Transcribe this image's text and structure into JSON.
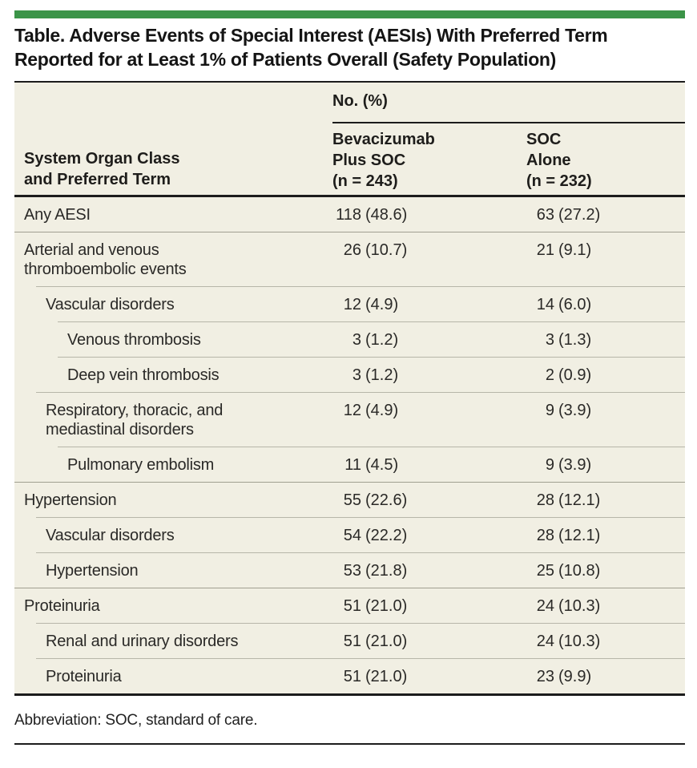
{
  "accent_color": "#3b9448",
  "table_background": "#f1efe3",
  "title": {
    "line1": "Table. Adverse Events of Special Interest (AESIs) With Preferred Term",
    "line2": "Reported for at Least 1% of Patients Overall (Safety Population)"
  },
  "table": {
    "column_group_header": "No. (%)",
    "row_header": {
      "line1": "System Organ Class",
      "line2": "and Preferred Term"
    },
    "col1_header": {
      "line1": "Bevacizumab",
      "line2": "Plus SOC",
      "line3": "(n = 243)"
    },
    "col2_header": {
      "line1": "SOC",
      "line2": "Alone",
      "line3": "(n = 232)"
    },
    "rows": [
      {
        "label": "Any AESI",
        "level": 0,
        "c1": "118",
        "p1": "(48.6)",
        "c2": "63",
        "p2": "(27.2)"
      },
      {
        "label": "Arterial and venous thromboembolic events",
        "level": 0,
        "c1": "26",
        "p1": "(10.7)",
        "c2": "21",
        "p2": "(9.1)"
      },
      {
        "label": "Vascular disorders",
        "level": 1,
        "c1": "12",
        "p1": "(4.9)",
        "c2": "14",
        "p2": "(6.0)"
      },
      {
        "label": "Venous thrombosis",
        "level": 2,
        "c1": "3",
        "p1": "(1.2)",
        "c2": "3",
        "p2": "(1.3)"
      },
      {
        "label": "Deep vein thrombosis",
        "level": 2,
        "c1": "3",
        "p1": "(1.2)",
        "c2": "2",
        "p2": "(0.9)"
      },
      {
        "label": "Respiratory, thoracic, and mediastinal disorders",
        "level": 1,
        "c1": "12",
        "p1": "(4.9)",
        "c2": "9",
        "p2": "(3.9)"
      },
      {
        "label": "Pulmonary embolism",
        "level": 2,
        "c1": "11",
        "p1": "(4.5)",
        "c2": "9",
        "p2": "(3.9)"
      },
      {
        "label": "Hypertension",
        "level": 0,
        "c1": "55",
        "p1": "(22.6)",
        "c2": "28",
        "p2": "(12.1)"
      },
      {
        "label": "Vascular disorders",
        "level": 1,
        "c1": "54",
        "p1": "(22.2)",
        "c2": "28",
        "p2": "(12.1)"
      },
      {
        "label": "Hypertension",
        "level": 1,
        "c1": "53",
        "p1": "(21.8)",
        "c2": "25",
        "p2": "(10.8)"
      },
      {
        "label": "Proteinuria",
        "level": 0,
        "c1": "51",
        "p1": "(21.0)",
        "c2": "24",
        "p2": "(10.3)"
      },
      {
        "label": "Renal and urinary disorders",
        "level": 1,
        "c1": "51",
        "p1": "(21.0)",
        "c2": "24",
        "p2": "(10.3)"
      },
      {
        "label": "Proteinuria",
        "level": 1,
        "c1": "51",
        "p1": "(21.0)",
        "c2": "23",
        "p2": "(9.9)"
      }
    ]
  },
  "footer": {
    "abbreviation": "Abbreviation: SOC, standard of care."
  }
}
